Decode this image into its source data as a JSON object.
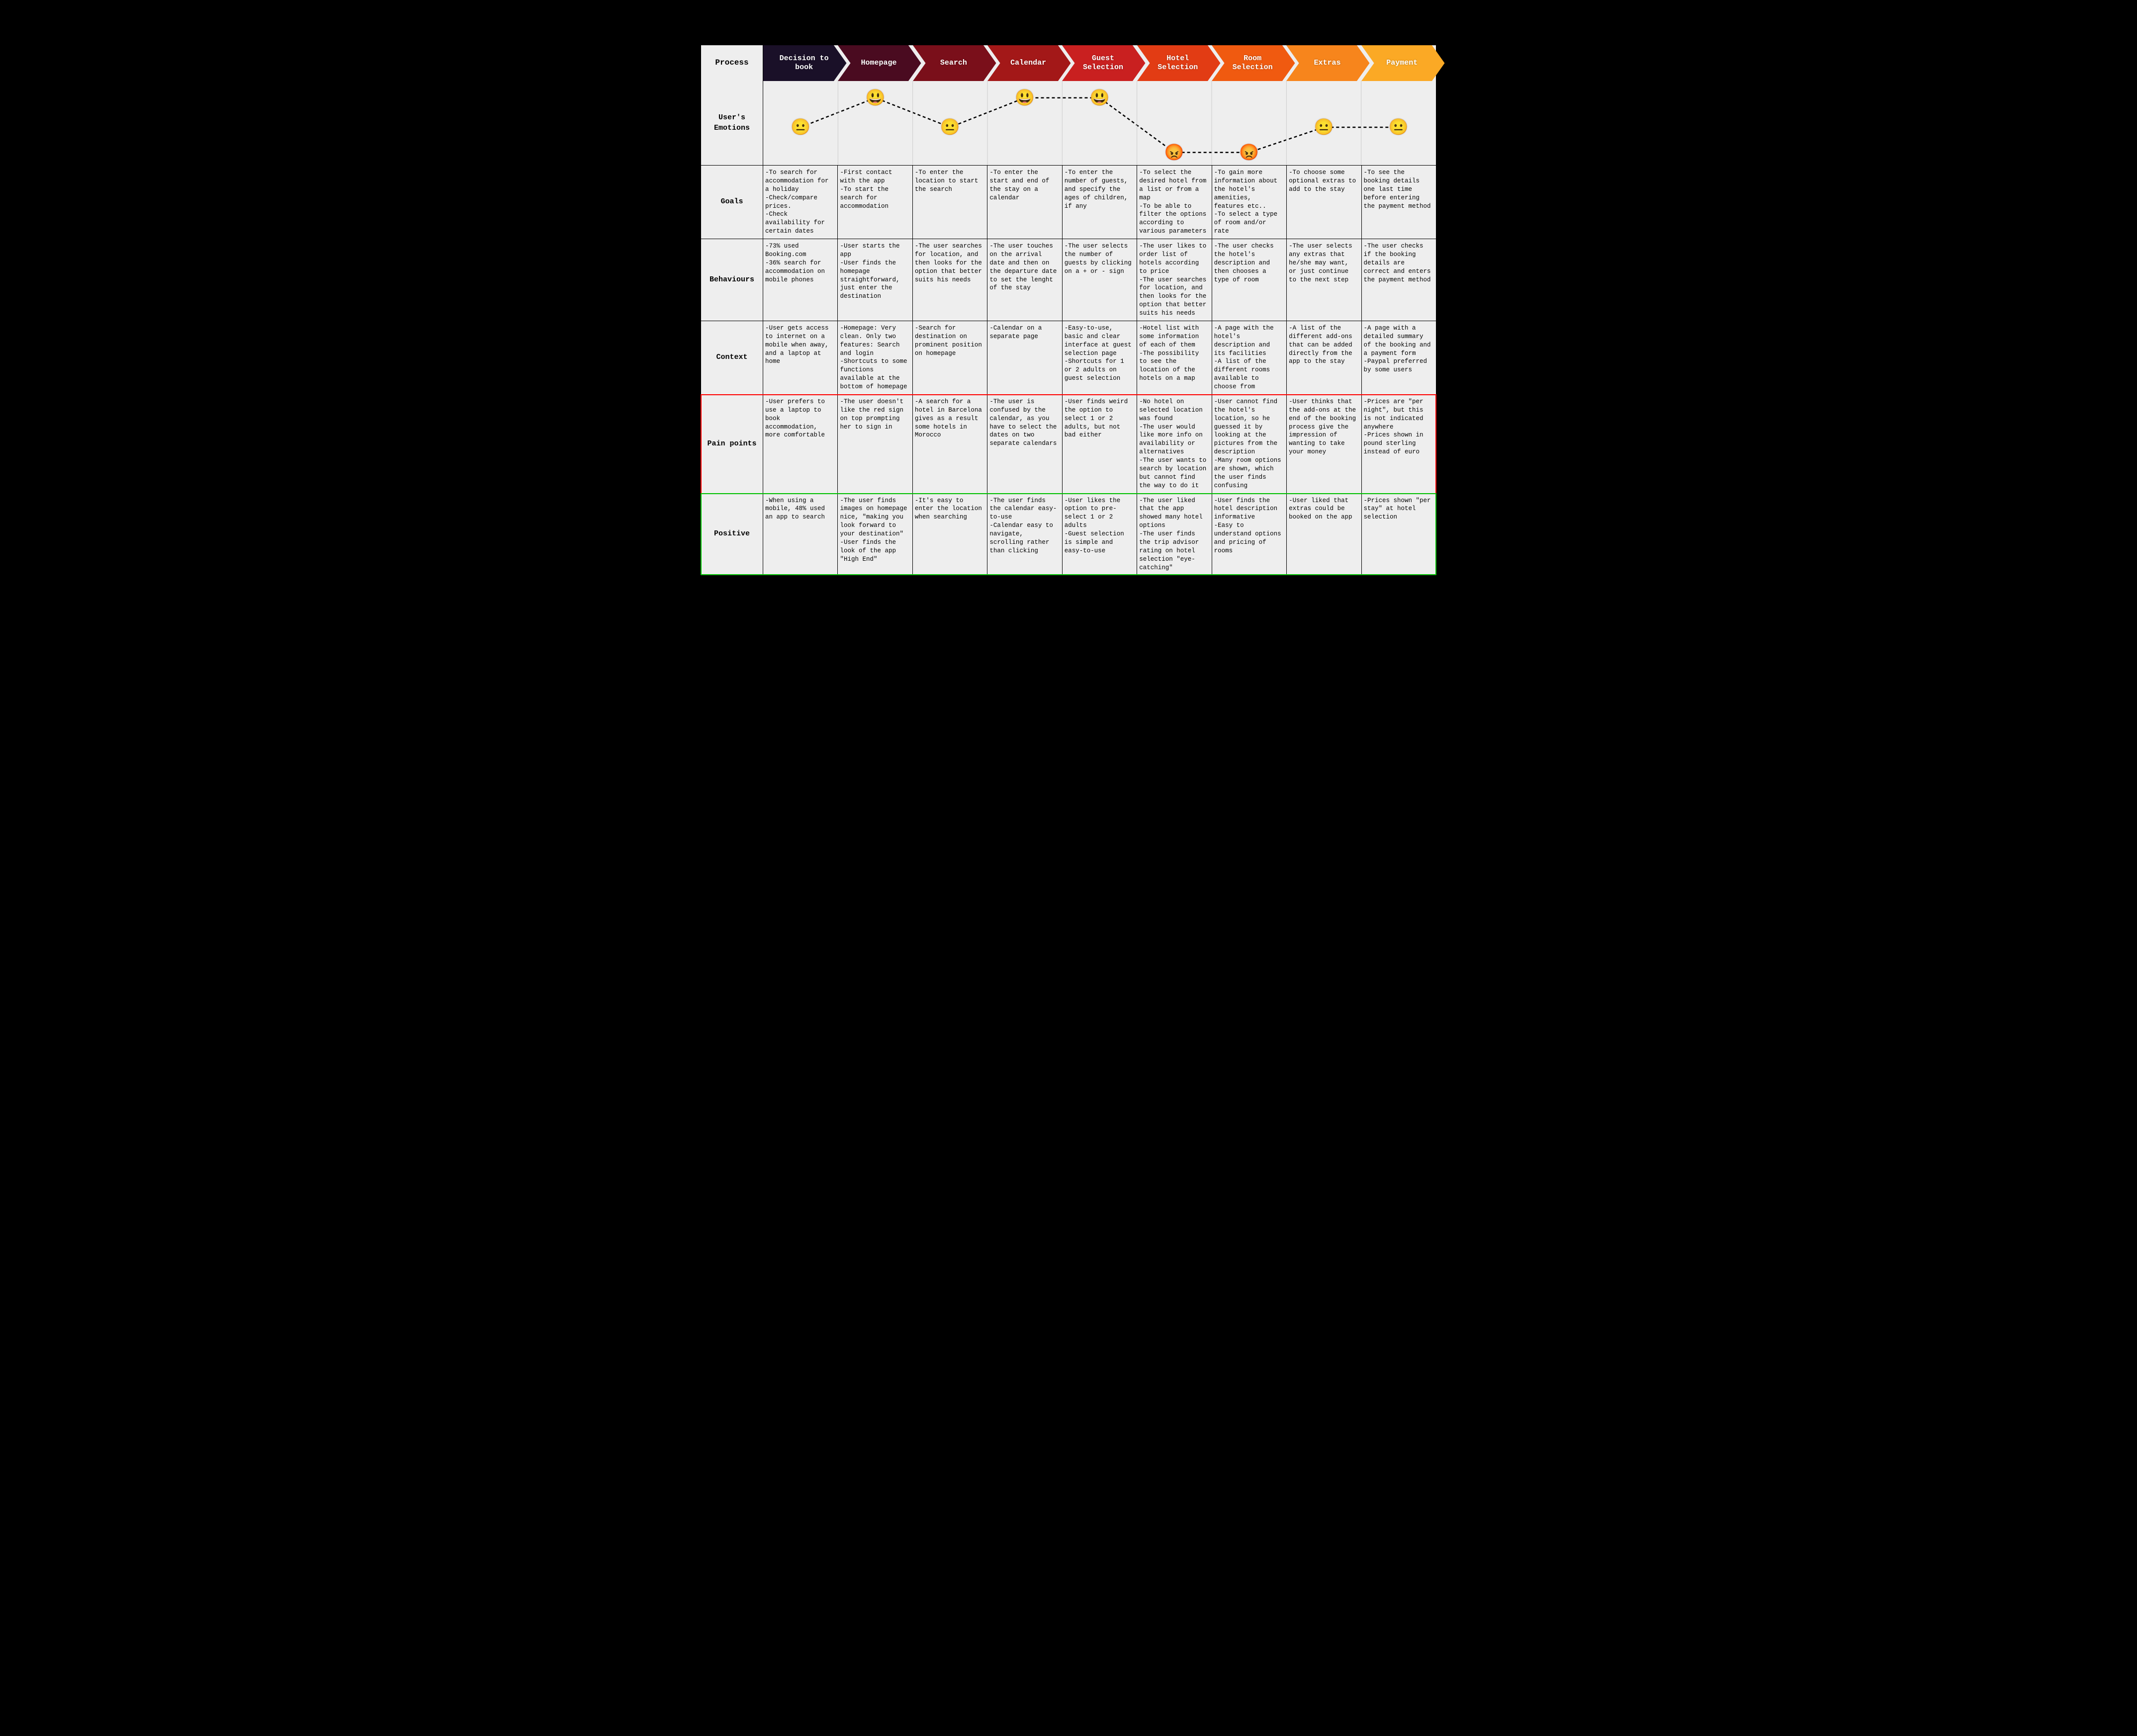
{
  "labels": {
    "process": "Process",
    "emotions": "User's\nEmotions",
    "goals": "Goals",
    "behaviours": "Behaviours",
    "context": "Context",
    "pain": "Pain points",
    "positive": "Positive"
  },
  "header_colors": [
    "#1a1028",
    "#4a0b20",
    "#7a0f1a",
    "#a31818",
    "#c92020",
    "#e23c14",
    "#f05a10",
    "#f7851c",
    "#fba925"
  ],
  "stages": [
    "Decision to book",
    "Homepage",
    "Search",
    "Calendar",
    "Guest Selection",
    "Hotel Selection",
    "Room Selection",
    "Extras",
    "Payment"
  ],
  "emotions": {
    "levels": [
      0.55,
      0.2,
      0.55,
      0.2,
      0.2,
      0.85,
      0.85,
      0.55,
      0.55
    ],
    "glyphs": [
      "😐",
      "😃",
      "😐",
      "😃",
      "😃",
      "😡",
      "😡",
      "😐",
      "😐"
    ],
    "line_color": "#000000",
    "line_dash": "6,5",
    "line_width": 2.5
  },
  "rows": {
    "goals": [
      "-To search for accommodation for a holiday\n-Check/compare prices.\n-Check availability for certain dates",
      "-First contact with the app\n-To start the search for accommodation",
      "-To enter the location to start the search",
      "-To enter the start and end of the stay on a calendar",
      "-To enter the number of guests, and specify the ages of children, if any",
      "-To select the desired hotel from a list or from a map\n-To be able to filter the options according to various parameters",
      "-To gain more information about the hotel's amenities, features etc..\n-To select a type of room and/or rate",
      "-To choose some optional extras to add to the stay",
      "-To see the booking details one last time before entering the payment method"
    ],
    "behaviours": [
      "-73% used Booking.com\n-36% search for accommodation on mobile phones",
      "-User starts the app\n-User finds the homepage straightforward, just enter the destination",
      "-The user searches for location, and then looks for the option that better suits his needs",
      "-The user touches on the arrival date and then on the departure date to set the lenght of the stay",
      "-The user selects the number of guests by clicking on a + or - sign",
      "-The user likes to order list of hotels according to price\n-The user searches for location, and then looks for the option that better suits his needs",
      "-The user checks the hotel's description and then chooses a type of room",
      "-The user selects any extras that he/she may want, or just continue to the next step",
      "-The user checks if the booking details are correct and enters the payment method"
    ],
    "context": [
      "-User gets access to internet on a mobile when away, and a laptop at home",
      "-Homepage: Very clean. Only two features: Search and login\n-Shortcuts to some functions available at the bottom of homepage",
      "-Search for destination on prominent position on homepage",
      "-Calendar on a separate page",
      "-Easy-to-use, basic and clear interface at guest selection page\n-Shortcuts for 1 or 2 adults on guest selection",
      "-Hotel list with some information of each of them\n-The possibility to see the location of the hotels on a map",
      "-A page with the hotel's description and its facilities\n-A list of the different rooms available to choose from",
      "-A list of the different add-ons that can be added directly from the app to the stay",
      "-A page with a detailed summary of the booking and a payment form\n-Paypal preferred by some users"
    ],
    "pain": [
      "-User prefers to use a laptop to book accommodation, more comfortable",
      "-The user doesn't like the red sign on top prompting her to sign in",
      "-A search for a hotel in Barcelona gives as a result some hotels in Morocco",
      "-The user is confused by the calendar, as you have to select the dates on two separate calendars",
      "-User finds weird the option to select 1 or 2 adults, but not bad either",
      "-No hotel on selected location was found\n-The user would like more info on availability or alternatives\n-The user wants to search by location but cannot find the way to do it",
      "-User cannot find the hotel's location, so he guessed it by looking at the pictures from the description\n-Many room options are shown, which the user finds confusing",
      "-User thinks that the add-ons at the end of the booking process give the impression of wanting to take your money",
      "-Prices are \"per night\", but this is not indicated anywhere\n-Prices shown in pound sterling instead of euro"
    ],
    "positive": [
      "-When using a mobile, 48% used an app to search",
      "-The user finds images on homepage nice, \"making you look forward to your destination\"\n-User finds the look of the app \"High End\"",
      "-It's easy to enter the location when searching",
      "-The user finds the calendar easy-to-use\n-Calendar easy to navigate, scrolling rather than clicking",
      "-User likes the option to pre-select 1 or 2 adults\n-Guest selection is simple and easy-to-use",
      "-The user liked that the app showed many hotel options\n-The user finds the trip advisor rating on hotel selection \"eye-catching\"",
      "-User finds the hotel description informative\n-Easy to understand options and pricing of rooms",
      "-User liked that extras could be booked on the app",
      "-Prices shown \"per stay\" at hotel selection"
    ]
  }
}
